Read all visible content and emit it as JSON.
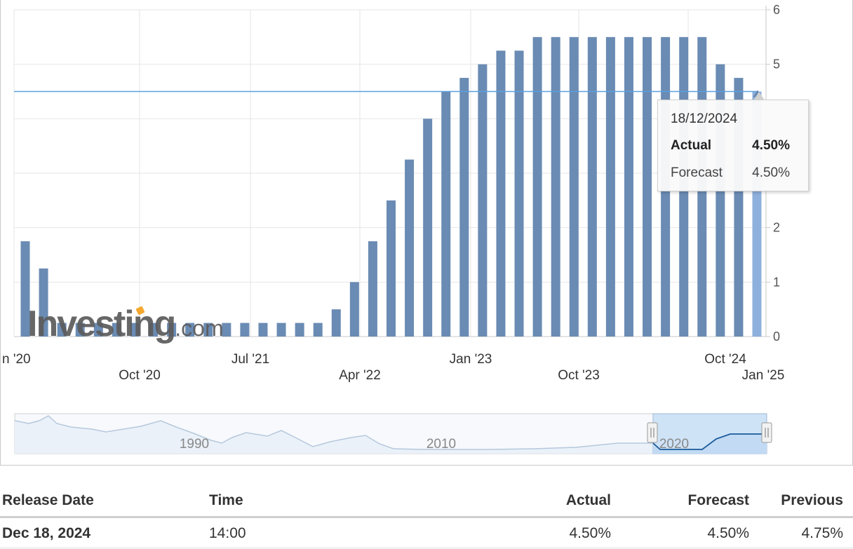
{
  "chart_data": {
    "type": "bar",
    "x": [
      "2020-01",
      "2020-03a",
      "2020-03b",
      "2020-05",
      "2020-06",
      "2020-08",
      "2020-09",
      "2020-11",
      "2020-12",
      "2021-01",
      "2021-03",
      "2021-05",
      "2021-06",
      "2021-07",
      "2021-09",
      "2021-11",
      "2021-12",
      "2022-01",
      "2022-03",
      "2022-05",
      "2022-06",
      "2022-07",
      "2022-09",
      "2022-11",
      "2022-12",
      "2023-02",
      "2023-03",
      "2023-05",
      "2023-06",
      "2023-07",
      "2023-09",
      "2023-11",
      "2023-12",
      "2024-01",
      "2024-03",
      "2024-05",
      "2024-06",
      "2024-07",
      "2024-09",
      "2024-11",
      "2024-12"
    ],
    "values": [
      1.75,
      1.25,
      0.25,
      0.25,
      0.25,
      0.25,
      0.25,
      0.25,
      0.25,
      0.25,
      0.25,
      0.25,
      0.25,
      0.25,
      0.25,
      0.25,
      0.25,
      0.5,
      1.0,
      1.75,
      2.5,
      3.25,
      4.0,
      4.5,
      4.75,
      5.0,
      5.25,
      5.25,
      5.5,
      5.5,
      5.5,
      5.5,
      5.5,
      5.5,
      5.5,
      5.5,
      5.5,
      5.5,
      5.0,
      4.75,
      4.5
    ],
    "ylim": [
      0,
      6
    ],
    "y_ticks": [
      "0",
      "1",
      "2",
      "",
      "",
      "5",
      "6"
    ],
    "x_tick_labels_row1": [
      "n '20",
      "Jul '21",
      "Jan '23",
      "Oct '24"
    ],
    "x_tick_labels_row2": [
      "Oct '20",
      "Apr '22",
      "Oct '23",
      "Jan '25"
    ],
    "reference_line": 4.5,
    "bar_color": "#6a8bb3",
    "highlight_color": "#8eb0dc",
    "grid": true,
    "navigator_years": [
      "1990",
      "2010",
      "2020"
    ]
  },
  "tooltip": {
    "date": "18/12/2024",
    "actual_label": "Actual",
    "actual_value": "4.50%",
    "forecast_label": "Forecast",
    "forecast_value": "4.50%"
  },
  "watermark": {
    "brand": "Investing",
    "suffix": ".com"
  },
  "table": {
    "headers": {
      "release_date": "Release Date",
      "time": "Time",
      "actual": "Actual",
      "forecast": "Forecast",
      "previous": "Previous"
    },
    "rows": [
      {
        "release_date": "Dec 18, 2024",
        "time": "14:00",
        "actual": "4.50%",
        "forecast": "4.50%",
        "previous": "4.75%"
      }
    ]
  }
}
